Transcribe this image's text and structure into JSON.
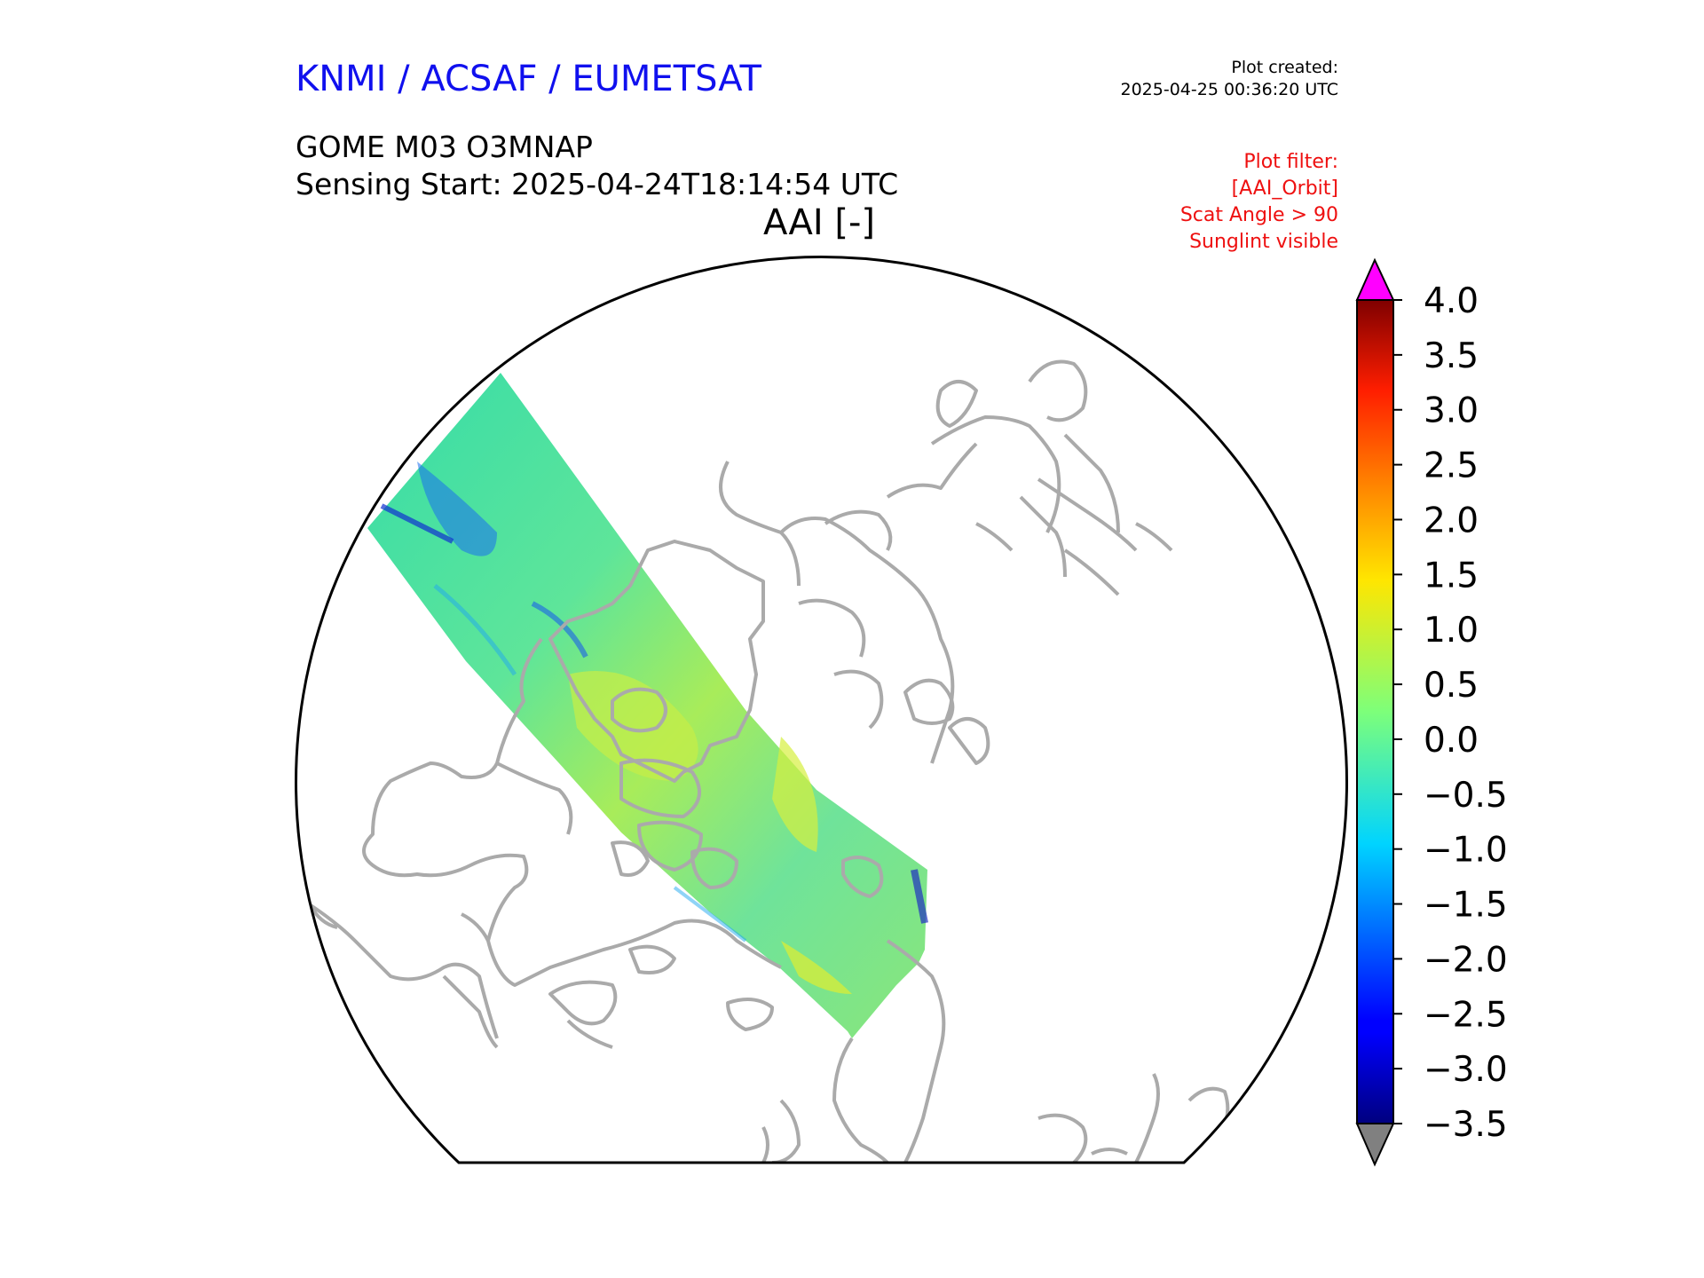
{
  "header": {
    "agency": "KNMI / ACSAF / EUMETSAT",
    "plot_created_label": "Plot created:",
    "plot_created_time": "2025-04-25 00:36:20 UTC",
    "product": "GOME M03 O3MNAP",
    "sensing_start": "Sensing Start: 2025-04-24T18:14:54 UTC",
    "variable_title": "AAI [-]"
  },
  "plot_filter": {
    "label": "Plot filter:",
    "lines": [
      "[AAI_Orbit]",
      "Scat Angle > 90",
      "Sunglint visible"
    ]
  },
  "colorbar": {
    "min": -3.5,
    "max": 4.0,
    "ticks": [
      "4.0",
      "3.5",
      "3.0",
      "2.5",
      "2.0",
      "1.5",
      "1.0",
      "0.5",
      "0.0",
      "−0.5",
      "−1.0",
      "−1.5",
      "−2.0",
      "−2.5",
      "−3.0",
      "−3.5"
    ],
    "tick_values": [
      4.0,
      3.5,
      3.0,
      2.5,
      2.0,
      1.5,
      1.0,
      0.5,
      0.0,
      -0.5,
      -1.0,
      -1.5,
      -2.0,
      -2.5,
      -3.0,
      -3.5
    ],
    "over_color": "#ff00ff",
    "under_color": "#808080",
    "colormap": "jet"
  },
  "colors": {
    "coastline": "#aaaaaa",
    "swath_main": "#4be8b0",
    "swath_yellow": "#c8ee40",
    "swath_blue": "#1a6cf0"
  }
}
